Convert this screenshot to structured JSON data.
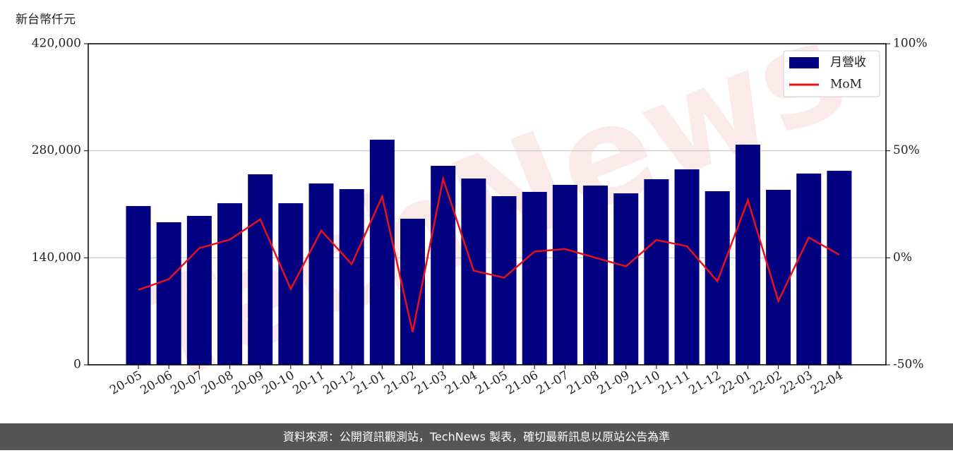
{
  "chart_data": {
    "type": "bar_line",
    "y_label": "新台幣仟元",
    "watermark": "TechNews",
    "source": "資料來源：公開資訊觀測站，TechNews 製表，確切最新訊息以原站公告為準",
    "categories": [
      "20-05",
      "20-06",
      "20-07",
      "20-08",
      "20-09",
      "20-10",
      "20-11",
      "20-12",
      "21-01",
      "21-02",
      "21-03",
      "21-04",
      "21-05",
      "21-06",
      "21-07",
      "21-08",
      "21-09",
      "21-10",
      "21-11",
      "21-12",
      "22-01",
      "22-02",
      "22-03",
      "22-04"
    ],
    "series": [
      {
        "name": "月營收",
        "color": "#000080",
        "type": "bar",
        "values": [
          207700,
          186500,
          194800,
          211400,
          249200,
          211400,
          237200,
          229800,
          294500,
          191100,
          260300,
          243700,
          220600,
          226200,
          235400,
          234500,
          224300,
          242800,
          255700,
          227100,
          288000,
          228900,
          250200,
          253800
        ]
      },
      {
        "name": "MoM",
        "color": "#e8101a",
        "type": "line",
        "axis": "y2",
        "values": [
          -15,
          -10,
          4.5,
          8.5,
          18,
          -14.6,
          12.7,
          -3,
          28.6,
          -34.7,
          36.8,
          -6,
          -9.3,
          2.9,
          4.1,
          0,
          -4,
          8.3,
          5.4,
          -11,
          26.9,
          -20.2,
          9.5,
          1.4
        ]
      }
    ],
    "ylim": [
      0,
      420000
    ],
    "yticks": [
      0,
      {
        "value": 140000,
        "label": "140,000"
      },
      {
        "value": 280000,
        "label": "280,000"
      },
      {
        "value": 420000,
        "label": "420,000"
      }
    ],
    "y2lim": [
      -50,
      100
    ],
    "y2ticks": [
      {
        "value": -50,
        "label": "-50%"
      },
      {
        "value": 0,
        "label": "0%"
      },
      {
        "value": 50,
        "label": "50%"
      },
      {
        "value": 100,
        "label": "100%"
      }
    ],
    "grid": true,
    "legend": "upper right"
  }
}
